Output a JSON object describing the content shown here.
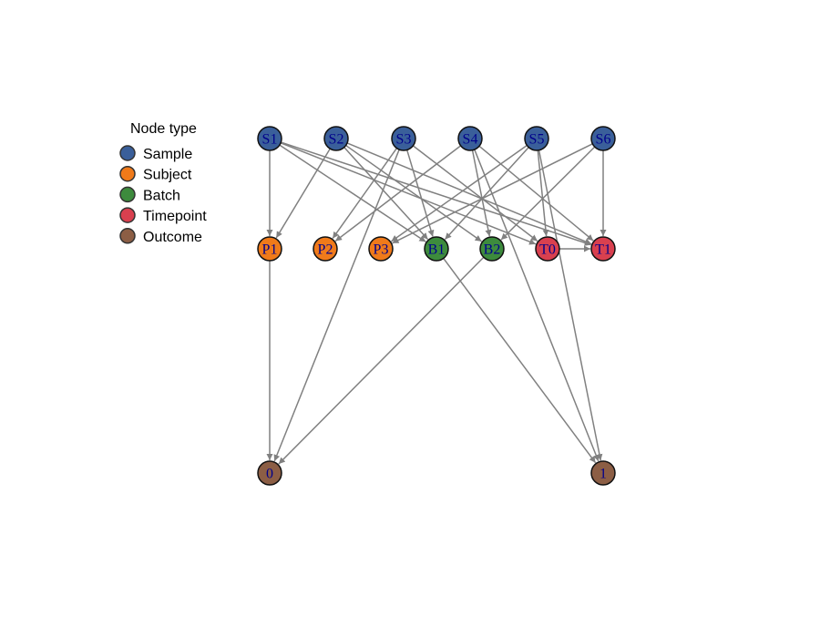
{
  "legend": {
    "title": "Node type",
    "items": [
      {
        "type": "sample",
        "label": "Sample",
        "color": "#3a5f9a"
      },
      {
        "type": "subject",
        "label": "Subject",
        "color": "#f07a1a"
      },
      {
        "type": "batch",
        "label": "Batch",
        "color": "#3d8b3d"
      },
      {
        "type": "timepoint",
        "label": "Timepoint",
        "color": "#d9404f"
      },
      {
        "type": "outcome",
        "label": "Outcome",
        "color": "#8c5e45"
      }
    ]
  },
  "edge_color": "#808080",
  "nodes": [
    {
      "id": "S1",
      "label": "S1",
      "type": "sample"
    },
    {
      "id": "S2",
      "label": "S2",
      "type": "sample"
    },
    {
      "id": "S3",
      "label": "S3",
      "type": "sample"
    },
    {
      "id": "S4",
      "label": "S4",
      "type": "sample"
    },
    {
      "id": "S5",
      "label": "S5",
      "type": "sample"
    },
    {
      "id": "S6",
      "label": "S6",
      "type": "sample"
    },
    {
      "id": "P1",
      "label": "P1",
      "type": "subject"
    },
    {
      "id": "P2",
      "label": "P2",
      "type": "subject"
    },
    {
      "id": "P3",
      "label": "P3",
      "type": "subject"
    },
    {
      "id": "B1",
      "label": "B1",
      "type": "batch"
    },
    {
      "id": "B2",
      "label": "B2",
      "type": "batch"
    },
    {
      "id": "T0",
      "label": "T0",
      "type": "timepoint"
    },
    {
      "id": "T1",
      "label": "T1",
      "type": "timepoint"
    },
    {
      "id": "O0",
      "label": "0",
      "type": "outcome"
    },
    {
      "id": "O1",
      "label": "1",
      "type": "outcome"
    }
  ],
  "edges": [
    [
      "S1",
      "P1"
    ],
    [
      "S1",
      "B1"
    ],
    [
      "S1",
      "T0"
    ],
    [
      "S1",
      "T1"
    ],
    [
      "S2",
      "P1"
    ],
    [
      "S2",
      "B1"
    ],
    [
      "S2",
      "B2"
    ],
    [
      "S2",
      "T1"
    ],
    [
      "S3",
      "P2"
    ],
    [
      "S3",
      "O0"
    ],
    [
      "S3",
      "B1"
    ],
    [
      "S3",
      "T0"
    ],
    [
      "S4",
      "P2"
    ],
    [
      "S4",
      "B2"
    ],
    [
      "S4",
      "O1"
    ],
    [
      "S4",
      "T1"
    ],
    [
      "S5",
      "P3"
    ],
    [
      "S5",
      "B1"
    ],
    [
      "S5",
      "T0"
    ],
    [
      "S5",
      "O1"
    ],
    [
      "S6",
      "P3"
    ],
    [
      "S6",
      "B2"
    ],
    [
      "S6",
      "T1"
    ],
    [
      "T0",
      "T1"
    ],
    [
      "P1",
      "O0"
    ],
    [
      "B2",
      "O0"
    ],
    [
      "B1",
      "O1"
    ]
  ]
}
